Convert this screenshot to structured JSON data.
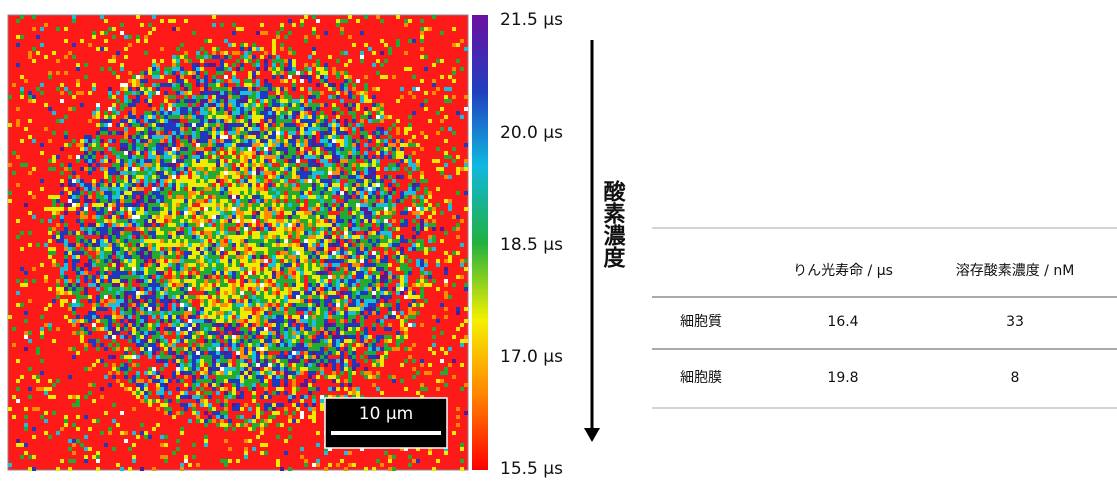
{
  "colorbar": {
    "labels": [
      "21.5 µs",
      "20.0 µs",
      "18.5 µs",
      "17.0 µs",
      "15.5 µs"
    ]
  },
  "scale_bar": {
    "label": "10 µm"
  },
  "arrow": {
    "label": "酸素濃度"
  },
  "table": {
    "header": [
      "りん光寿命 / µs",
      "溶存酸素濃度 / nM"
    ],
    "rows": [
      [
        "細胞質",
        "16.4",
        "33"
      ],
      [
        "細胞膜",
        "19.8",
        "8"
      ]
    ]
  }
}
